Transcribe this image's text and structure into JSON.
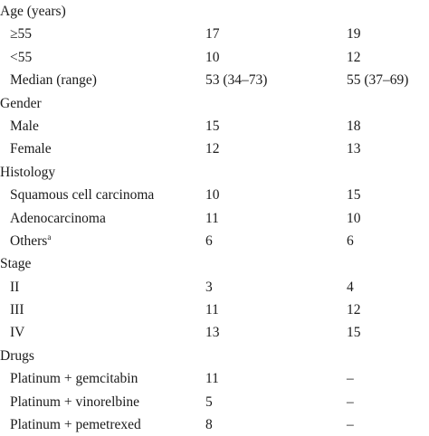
{
  "rows": [
    {
      "type": "section",
      "label": "Age (years)"
    },
    {
      "type": "item",
      "label": "≥55",
      "a": "17",
      "b": "19"
    },
    {
      "type": "item",
      "label": "<55",
      "a": "10",
      "b": "12"
    },
    {
      "type": "item",
      "label": "Median (range)",
      "a": "53 (34–73)",
      "b": "55 (37–69)"
    },
    {
      "type": "section",
      "label": "Gender"
    },
    {
      "type": "item",
      "label": "Male",
      "a": "15",
      "b": "18"
    },
    {
      "type": "item",
      "label": "Female",
      "a": "12",
      "b": "13"
    },
    {
      "type": "section",
      "label": "Histology"
    },
    {
      "type": "item",
      "label": "Squamous cell carcinoma",
      "a": "10",
      "b": "15"
    },
    {
      "type": "item",
      "label": "Adenocarcinoma",
      "a": "11",
      "b": "10"
    },
    {
      "type": "item",
      "label": "Others",
      "sup": "a",
      "a": "6",
      "b": "6"
    },
    {
      "type": "section",
      "label": "Stage"
    },
    {
      "type": "item",
      "label": "II",
      "a": "3",
      "b": "4"
    },
    {
      "type": "item",
      "label": "III",
      "a": "11",
      "b": "12"
    },
    {
      "type": "item",
      "label": "IV",
      "a": "13",
      "b": "15"
    },
    {
      "type": "section",
      "label": "Drugs"
    },
    {
      "type": "item",
      "label": "Platinum + gemcitabin",
      "a": "11",
      "b": "–"
    },
    {
      "type": "item",
      "label": "Platinum + vinorelbine",
      "a": "5",
      "b": "–"
    },
    {
      "type": "item",
      "label": "Platinum + pemetrexed",
      "a": "8",
      "b": "–"
    }
  ]
}
